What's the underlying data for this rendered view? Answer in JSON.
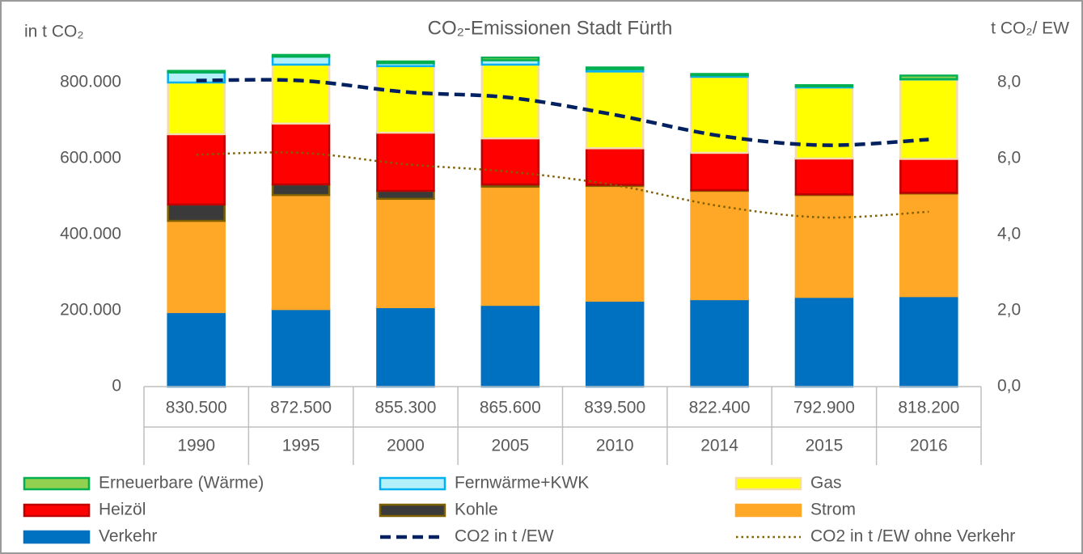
{
  "chart_data": {
    "type": "bar",
    "stacked": true,
    "title": "CO₂-Emissionen  Stadt Fürth",
    "y_label": "in t CO₂",
    "y2_label": "t CO₂/ EW",
    "categories": [
      "1990",
      "1995",
      "2000",
      "2005",
      "2010",
      "2014",
      "2015",
      "2016"
    ],
    "totals": {
      "values": [
        830500,
        872500,
        855300,
        865600,
        839500,
        822400,
        792900,
        818200
      ],
      "value_labels": [
        "830.500",
        "872.500",
        "855.300",
        "865.600",
        "839.500",
        "822.400",
        "792.900",
        "818.200"
      ]
    },
    "ylim": [
      0,
      900000
    ],
    "yticks": [
      {
        "value": 0,
        "label": "0"
      },
      {
        "value": 200000,
        "label": "200.000"
      },
      {
        "value": 400000,
        "label": "400.000"
      },
      {
        "value": 600000,
        "label": "600.000"
      },
      {
        "value": 800000,
        "label": "800.000"
      }
    ],
    "y2lim": [
      0,
      9
    ],
    "y2ticks": [
      {
        "value": 0,
        "label": "0,0"
      },
      {
        "value": 2,
        "label": "2,0"
      },
      {
        "value": 4,
        "label": "4,0"
      },
      {
        "value": 6,
        "label": "6,0"
      },
      {
        "value": 8,
        "label": "8,0"
      }
    ],
    "grid": false,
    "legend": "bottom",
    "series": [
      {
        "name": "Erneuerbare (Wärme)",
        "type": "bar",
        "color": "#92d050",
        "stroke": "#00b050",
        "values": [
          4000,
          4500,
          4300,
          7000,
          4500,
          3400,
          2900,
          9200
        ]
      },
      {
        "name": "Fernwärme+KWK",
        "type": "bar",
        "color": "#b4f0fa",
        "stroke": "#00b0f0",
        "values": [
          26500,
          21000,
          8000,
          11600,
          6000,
          4000,
          3000,
          1000
        ]
      },
      {
        "name": "Gas",
        "type": "bar",
        "color": "#ffff00",
        "stroke": "#f2dcb0",
        "values": [
          136000,
          155000,
          175000,
          194000,
          202000,
          200000,
          187000,
          209000
        ]
      },
      {
        "name": "Heizöl",
        "type": "bar",
        "color": "#ff0000",
        "stroke": "#c00000",
        "values": [
          185000,
          160000,
          153000,
          121000,
          96000,
          98000,
          94000,
          89000
        ]
      },
      {
        "name": "Kohle",
        "type": "bar",
        "color": "#3a3a3a",
        "stroke": "#7f6000",
        "values": [
          43000,
          28000,
          21000,
          6000,
          3000,
          2000,
          2000,
          2000
        ]
      },
      {
        "name": "Strom",
        "type": "bar",
        "color": "#ffa726",
        "stroke": "#ffa726",
        "values": [
          240000,
          300000,
          285000,
          311000,
          302000,
          285000,
          268000,
          270000
        ]
      },
      {
        "name": "Verkehr",
        "type": "bar",
        "color": "#0070c0",
        "stroke": "#0070c0",
        "values": [
          196000,
          204000,
          209000,
          215000,
          226000,
          230000,
          236000,
          238000
        ]
      },
      {
        "name": "CO2 in t /EW",
        "type": "line",
        "axis": "y2",
        "dash": "dashed",
        "color": "#002060",
        "values": [
          8.05,
          8.05,
          7.75,
          7.6,
          7.15,
          6.6,
          6.35,
          6.5
        ]
      },
      {
        "name": "CO2 in t /EW ohne Verkehr",
        "type": "line",
        "axis": "y2",
        "dash": "dotted",
        "color": "#806000",
        "values": [
          6.1,
          6.15,
          5.85,
          5.65,
          5.3,
          4.75,
          4.45,
          4.6
        ]
      }
    ]
  }
}
